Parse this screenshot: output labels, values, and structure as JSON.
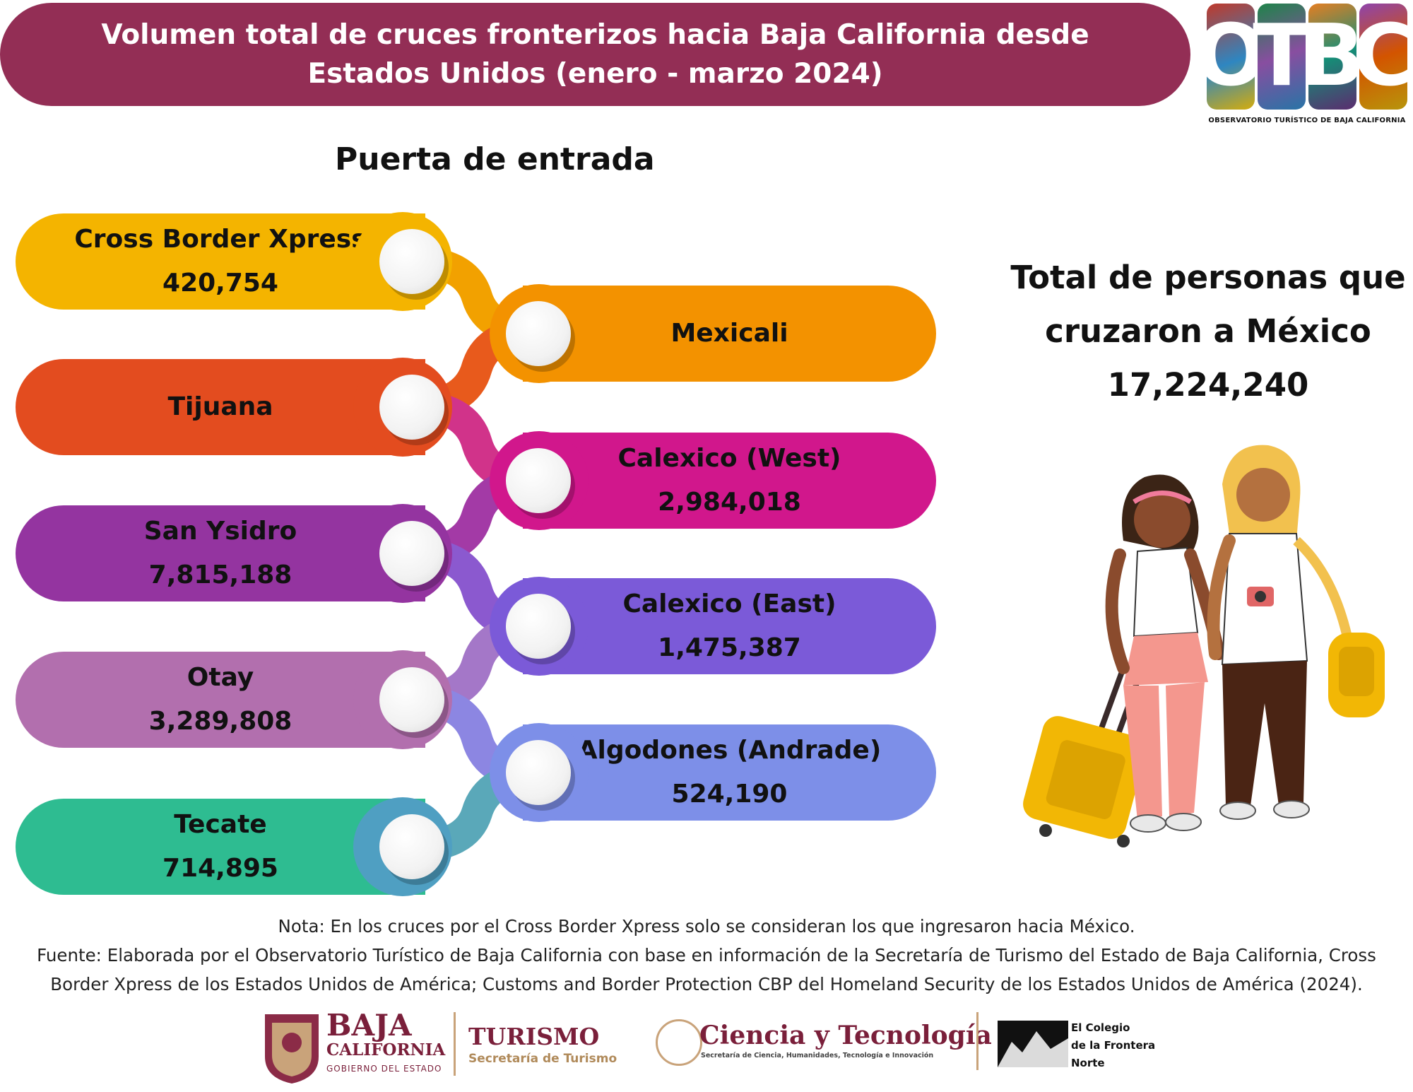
{
  "header": {
    "title_line1": "Volumen total de cruces fronterizos hacia Baja California desde",
    "title_line2": "Estados Unidos (enero - marzo 2024)"
  },
  "logo_otbc": {
    "letters": [
      "O",
      "T",
      "B",
      "C"
    ],
    "caption": "OBSERVATORIO TURÍSTICO DE BAJA CALIFORNIA"
  },
  "subtitle": "Puerta de entrada",
  "ports_left": [
    {
      "label": "Cross Border Xpress",
      "value": "420,754",
      "color": "#f4b400"
    },
    {
      "label": "Tijuana",
      "value": "",
      "color": "#e34c1f"
    },
    {
      "label": "San Ysidro",
      "value": "7,815,188",
      "color": "#9434a0"
    },
    {
      "label": "Otay",
      "value": "3,289,808",
      "color": "#b26fae"
    },
    {
      "label": "Tecate",
      "value": "714,895",
      "color": "#2ebc91"
    }
  ],
  "ports_right": [
    {
      "label": "Mexicali",
      "value": "",
      "color": "#f39200"
    },
    {
      "label": "Calexico (West)",
      "value": "2,984,018",
      "color": "#d1178c"
    },
    {
      "label": "Calexico (East)",
      "value": "1,475,387",
      "color": "#7b5ad8"
    },
    {
      "label": "Algodones (Andrade)",
      "value": "524,190",
      "color": "#7d8fe8"
    }
  ],
  "total": {
    "line1": "Total de personas que",
    "line2": "cruzaron a México",
    "value": "17,224,240"
  },
  "notes": {
    "nota": "Nota: En los cruces por el Cross Border Xpress solo se consideran los que ingresaron hacia México.",
    "fuente1": "Fuente: Elaborada por el Observatorio Turístico de Baja California con base en información de la Secretaría de Turismo del Estado de Baja California, Cross",
    "fuente2": "Border Xpress de los Estados Unidos de América; Customs and Border Protection CBP del Homeland Security de los Estados Unidos de América (2024)."
  },
  "footer": {
    "baja": "BAJA",
    "california": "CALIFORNIA",
    "gobierno": "GOBIERNO DEL ESTADO",
    "turismo": "TURISMO",
    "secretaria": "Secretaría de Turismo",
    "ciencia": "Ciencia y Tecnología",
    "ciencia_sub": "Secretaría de Ciencia, Humanidades, Tecnología e Innovación",
    "colef1": "El Colegio",
    "colef2": "de la Frontera",
    "colef3": "Norte"
  }
}
